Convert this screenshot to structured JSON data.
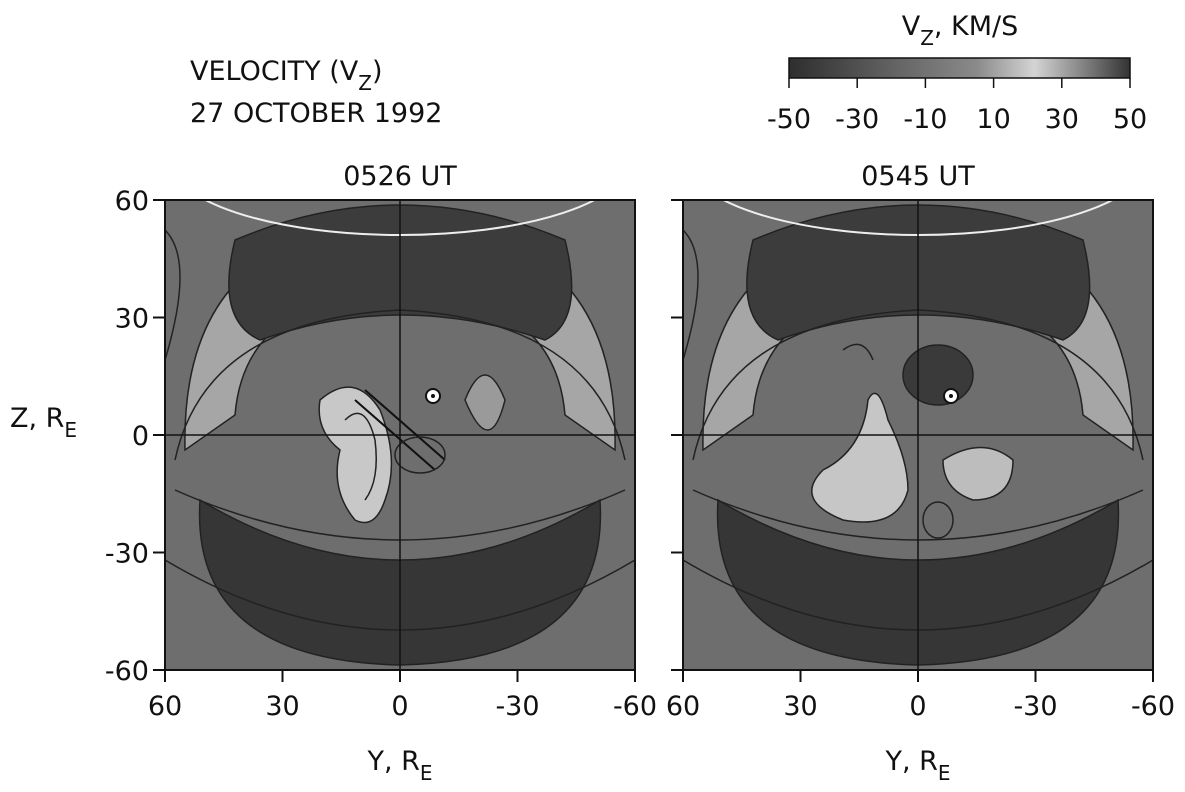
{
  "header": {
    "title": {
      "main": "VELOCITY (V",
      "sub": "Z",
      "tail": ")"
    },
    "date": "27 OCTOBER 1992"
  },
  "colorbar": {
    "label": {
      "main": "V",
      "sub": "Z",
      "tail": ", KM/S"
    },
    "lim": [
      -50,
      50
    ],
    "ticks": [
      -50,
      -30,
      -10,
      10,
      30,
      50
    ]
  },
  "chart_data": [
    {
      "type": "contour",
      "title": "0526 UT",
      "xlabel": {
        "main": "Y, R",
        "sub": "E"
      },
      "ylabel": {
        "main": "Z, R",
        "sub": "E"
      },
      "xlim": [
        60,
        -60
      ],
      "ylim": [
        -60,
        60
      ],
      "xticks": [
        60,
        30,
        0,
        -30,
        -60
      ],
      "yticks": [
        -60,
        -30,
        0,
        30,
        60
      ]
    },
    {
      "type": "contour",
      "title": "0545 UT",
      "xlabel": {
        "main": "Y, R",
        "sub": "E"
      },
      "xlim": [
        60,
        -60
      ],
      "ylim": [
        -60,
        60
      ],
      "xticks": [
        60,
        30,
        0,
        -30,
        -60
      ],
      "yticks": [
        -60,
        -30,
        0,
        30,
        60
      ]
    }
  ]
}
